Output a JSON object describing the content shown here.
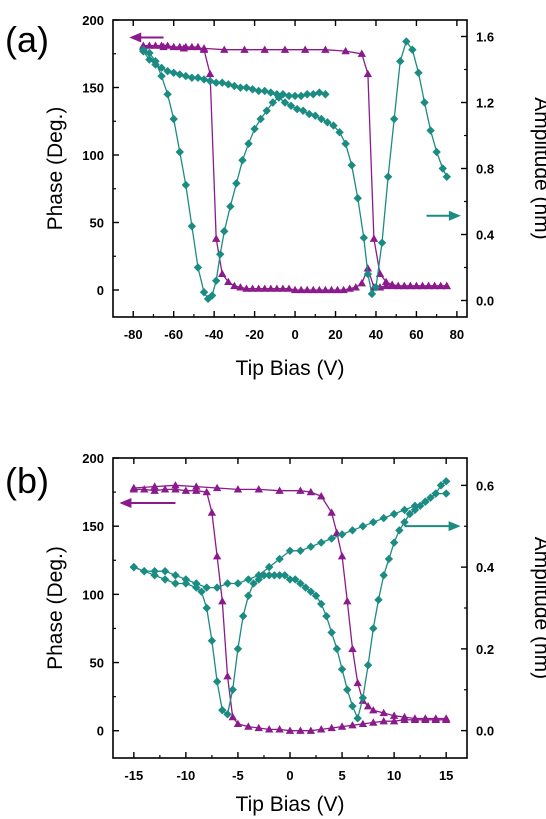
{
  "colors": {
    "phase": "#8B1A8C",
    "amplitude": "#1B8C82",
    "axis": "#000000"
  },
  "chart_data": [
    {
      "type": "scatter",
      "panel_label": "(a)",
      "xlabel": "Tip Bias (V)",
      "ylabel": "Phase (Deg.)",
      "y2label": "Amplitude (nm)",
      "xlim": [
        -90,
        85
      ],
      "ylim": [
        -20,
        200
      ],
      "y2lim": [
        -0.1,
        1.7
      ],
      "xticks": [
        -80,
        -60,
        -40,
        -20,
        0,
        20,
        40,
        60,
        80
      ],
      "yticks": [
        0,
        50,
        100,
        150,
        200
      ],
      "y2ticks": [
        "0.0",
        "0.4",
        "0.8",
        "1.2",
        "1.6"
      ],
      "y2tick_values": [
        0.0,
        0.4,
        0.8,
        1.2,
        1.6
      ],
      "series": [
        {
          "axis": "left",
          "marker": "triangle",
          "color": "#8B1A8C",
          "x": [
            -75,
            -72,
            -69,
            -66,
            -63,
            -60,
            -57,
            -54,
            -51,
            -48,
            -45,
            -42,
            -39,
            -36,
            -33,
            -30,
            -27,
            -24,
            -21,
            -18,
            -15,
            -12,
            -9,
            -6,
            -3,
            0,
            3,
            6,
            9,
            12,
            15,
            18,
            21,
            24,
            27,
            30,
            33,
            36,
            39,
            42,
            45,
            48,
            51,
            54,
            57,
            60,
            63,
            66,
            69,
            72,
            75
          ],
          "y": [
            181,
            181,
            181,
            181,
            181,
            180,
            180,
            180,
            180,
            180,
            178,
            160,
            38,
            12,
            6,
            3,
            2,
            1,
            1,
            1,
            1,
            1,
            1,
            1,
            1,
            0,
            0,
            0,
            0,
            0,
            0,
            0,
            0,
            0,
            1,
            2,
            5,
            16,
            2,
            2,
            3,
            3,
            3,
            3,
            3,
            3,
            3,
            3,
            3,
            3,
            3
          ],
          "sweep_x": [
            -75,
            -65,
            -55,
            -45,
            -35,
            -25,
            -15,
            -5,
            5,
            15,
            25,
            33,
            36,
            39,
            42,
            45,
            48,
            51,
            54,
            57,
            60,
            63,
            66,
            69,
            72,
            75
          ],
          "sweep_y": [
            180,
            180,
            179,
            179,
            178,
            178,
            178,
            178,
            178,
            178,
            177,
            175,
            160,
            38,
            12,
            6,
            4,
            3,
            3,
            3,
            3,
            3,
            3,
            3,
            3,
            3
          ]
        },
        {
          "axis": "right",
          "marker": "diamond",
          "color": "#1B8C82",
          "x": [
            -75,
            -72,
            -69,
            -66,
            -63,
            -60,
            -57,
            -54,
            -51,
            -48,
            -45,
            -43,
            -41,
            -39,
            -37,
            -35,
            -32,
            -29,
            -26,
            -23,
            -20,
            -17,
            -14,
            -11,
            -8,
            -5,
            -2,
            1,
            4,
            7,
            10,
            13,
            16,
            19,
            22,
            25,
            28,
            31,
            34,
            36,
            38,
            40,
            43,
            46,
            49,
            52,
            55,
            58,
            61,
            64,
            67,
            70,
            73,
            75
          ],
          "y": [
            1.52,
            1.5,
            1.45,
            1.36,
            1.25,
            1.1,
            0.9,
            0.7,
            0.45,
            0.2,
            0.05,
            0.01,
            0.03,
            0.12,
            0.28,
            0.42,
            0.57,
            0.71,
            0.85,
            0.95,
            1.04,
            1.1,
            1.15,
            1.2,
            1.23,
            1.2,
            1.18,
            1.16,
            1.15,
            1.13,
            1.12,
            1.1,
            1.08,
            1.06,
            1.02,
            0.95,
            0.82,
            0.62,
            0.38,
            0.16,
            0.04,
            0.08,
            0.35,
            0.75,
            1.1,
            1.45,
            1.57,
            1.52,
            1.38,
            1.2,
            1.03,
            0.9,
            0.8,
            0.75
          ],
          "sweep_x": [
            -75,
            -72,
            -69,
            -66,
            -63,
            -60,
            -57,
            -54,
            -51,
            -48,
            -45,
            -42,
            -39,
            -36,
            -33,
            -30,
            -27,
            -24,
            -21,
            -18,
            -15,
            -12,
            -9,
            -6,
            -3,
            0,
            3,
            6,
            9,
            12,
            15
          ],
          "sweep_y": [
            1.51,
            1.46,
            1.43,
            1.41,
            1.39,
            1.38,
            1.37,
            1.36,
            1.35,
            1.35,
            1.34,
            1.33,
            1.32,
            1.32,
            1.31,
            1.3,
            1.29,
            1.29,
            1.28,
            1.27,
            1.27,
            1.26,
            1.25,
            1.25,
            1.24,
            1.24,
            1.24,
            1.25,
            1.25,
            1.26,
            1.25
          ]
        }
      ],
      "arrows": [
        {
          "direction": "left",
          "color": "#8B1A8C",
          "x": [
            -65,
            -80
          ],
          "y": 187
        },
        {
          "direction": "right",
          "color": "#1B8C82",
          "x": [
            65,
            80
          ],
          "y": 55
        }
      ]
    },
    {
      "type": "scatter",
      "panel_label": "(b)",
      "xlabel": "Tip Bias (V)",
      "ylabel": "Phase (Deg.)",
      "y2label": "Amplitude (nm)",
      "xlim": [
        -17,
        17
      ],
      "ylim": [
        -20,
        200
      ],
      "y2lim": [
        -0.067,
        0.667
      ],
      "xticks": [
        -15,
        -10,
        -5,
        0,
        5,
        10,
        15
      ],
      "yticks": [
        0,
        50,
        100,
        150,
        200
      ],
      "y2ticks": [
        "0.0",
        "0.2",
        "0.4",
        "0.6"
      ],
      "y2tick_values": [
        0.0,
        0.2,
        0.4,
        0.6
      ],
      "series": [
        {
          "axis": "left",
          "marker": "triangle",
          "color": "#8B1A8C",
          "x": [
            -15,
            -14,
            -13,
            -12,
            -11,
            -10,
            -9,
            -8,
            -7.5,
            -7,
            -6.5,
            -6,
            -5.5,
            -5,
            -4,
            -3,
            -2,
            -1,
            0,
            1,
            2,
            3,
            4,
            5,
            6,
            7,
            8,
            9,
            10,
            11,
            12,
            13,
            14,
            15
          ],
          "y": [
            177,
            177,
            176,
            177,
            177,
            176,
            176,
            175,
            160,
            128,
            95,
            40,
            10,
            5,
            3,
            2,
            1,
            1,
            0,
            0,
            0,
            1,
            2,
            3,
            4,
            5,
            6,
            7,
            7,
            8,
            8,
            8,
            8,
            8
          ],
          "sweep_x": [
            -15,
            -13,
            -11,
            -9,
            -7,
            -5,
            -3,
            -1,
            1,
            2,
            3,
            4,
            4.5,
            5,
            5.5,
            6,
            6.5,
            7,
            7.5,
            8,
            9,
            10,
            11,
            12,
            13,
            14,
            15
          ],
          "sweep_y": [
            178,
            179,
            180,
            179,
            178,
            177,
            177,
            176,
            176,
            175,
            172,
            160,
            145,
            128,
            95,
            60,
            35,
            22,
            18,
            15,
            13,
            11,
            10,
            9,
            9,
            9,
            9
          ]
        },
        {
          "axis": "right",
          "marker": "diamond",
          "color": "#1B8C82",
          "x": [
            -15,
            -14,
            -13,
            -12,
            -11,
            -10,
            -9,
            -8.5,
            -8,
            -7.5,
            -7,
            -6.5,
            -6,
            -5.5,
            -5,
            -4.5,
            -4,
            -3.5,
            -3,
            -2.5,
            -2,
            -1.5,
            -1,
            -0.5,
            0,
            0.5,
            1,
            1.5,
            2,
            2.5,
            3,
            3.5,
            4,
            4.5,
            5,
            5.5,
            6,
            6.5,
            7,
            7.5,
            8,
            8.5,
            9,
            9.5,
            10,
            10.5,
            11,
            11.5,
            12,
            12.5,
            13,
            13.5,
            14,
            14.5,
            15
          ],
          "y": [
            0.4,
            0.39,
            0.38,
            0.37,
            0.36,
            0.36,
            0.35,
            0.34,
            0.3,
            0.22,
            0.12,
            0.05,
            0.04,
            0.1,
            0.2,
            0.28,
            0.33,
            0.36,
            0.37,
            0.38,
            0.38,
            0.38,
            0.38,
            0.38,
            0.37,
            0.37,
            0.36,
            0.35,
            0.34,
            0.33,
            0.31,
            0.28,
            0.24,
            0.2,
            0.15,
            0.1,
            0.06,
            0.03,
            0.08,
            0.16,
            0.25,
            0.32,
            0.38,
            0.42,
            0.46,
            0.49,
            0.51,
            0.53,
            0.54,
            0.55,
            0.56,
            0.57,
            0.58,
            0.6,
            0.61
          ],
          "sweep_x": [
            -15,
            -14,
            -13,
            -12,
            -11,
            -10,
            -9,
            -8,
            -7,
            -6,
            -5,
            -4,
            -3,
            -2,
            -1,
            0,
            1,
            2,
            3,
            4,
            5,
            6,
            7,
            8,
            9,
            10,
            11,
            12,
            13,
            14,
            15
          ],
          "sweep_y": [
            0.4,
            0.39,
            0.39,
            0.39,
            0.38,
            0.37,
            0.36,
            0.35,
            0.35,
            0.36,
            0.36,
            0.37,
            0.38,
            0.4,
            0.42,
            0.44,
            0.44,
            0.45,
            0.46,
            0.47,
            0.48,
            0.49,
            0.5,
            0.51,
            0.52,
            0.53,
            0.54,
            0.55,
            0.56,
            0.58,
            0.58
          ]
        }
      ],
      "arrows": [
        {
          "direction": "left",
          "color": "#8B1A8C",
          "x": [
            -11,
            -16
          ],
          "y": 167
        },
        {
          "direction": "right",
          "color": "#1B8C82",
          "x": [
            11,
            16
          ],
          "y": 150
        }
      ]
    }
  ]
}
